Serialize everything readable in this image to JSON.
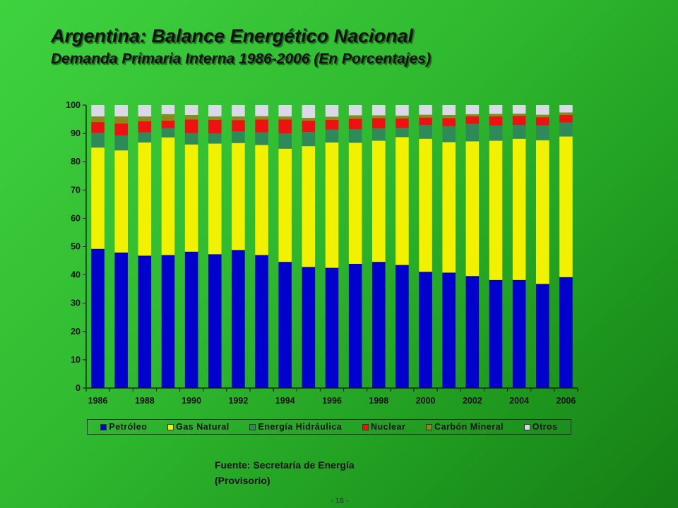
{
  "title": "Argentina: Balance Energético Nacional",
  "subtitle": "Demanda Primaria Interna 1986-2006 (En Porcentajes)",
  "source_line1": "Fuente: Secretaría de Energía",
  "source_line2": "(Provisorio)",
  "page_number": "- 18 -",
  "chart_data": {
    "type": "bar",
    "stacked": true,
    "categories": [
      "1986",
      "1987",
      "1988",
      "1989",
      "1990",
      "1991",
      "1992",
      "1993",
      "1994",
      "1995",
      "1996",
      "1997",
      "1998",
      "1999",
      "2000",
      "2001",
      "2002",
      "2003",
      "2004",
      "2005",
      "2006"
    ],
    "x_tick_labels": [
      "1986",
      "1988",
      "1990",
      "1992",
      "1994",
      "1996",
      "1998",
      "2000",
      "2002",
      "2004",
      "2006"
    ],
    "ylim": [
      0,
      100
    ],
    "y_ticks": [
      0,
      10,
      20,
      30,
      40,
      50,
      60,
      70,
      80,
      90,
      100
    ],
    "grid": false,
    "legend_position": "bottom",
    "series": [
      {
        "name": "Petróleo",
        "color": "#0000cc",
        "values": [
          49.2,
          47.9,
          46.8,
          47.0,
          48.2,
          47.3,
          48.8,
          47.0,
          44.6,
          42.8,
          42.5,
          43.9,
          44.6,
          43.5,
          41.1,
          40.8,
          39.6,
          38.2,
          38.2,
          36.8,
          39.2
        ]
      },
      {
        "name": "Gas Natural",
        "color": "#f2f200",
        "values": [
          35.8,
          36.1,
          40.0,
          41.6,
          37.9,
          39.1,
          37.8,
          38.9,
          40.0,
          42.7,
          44.3,
          42.8,
          42.8,
          45.2,
          47.0,
          46.1,
          47.6,
          49.2,
          49.9,
          50.8,
          49.7
        ]
      },
      {
        "name": "Energía Hidráulica",
        "color": "#2e8b57",
        "values": [
          5.2,
          5.3,
          3.6,
          3.3,
          4.0,
          3.6,
          4.1,
          4.5,
          5.4,
          5.0,
          4.6,
          4.8,
          4.4,
          3.3,
          4.9,
          5.7,
          6.2,
          5.4,
          4.9,
          5.3,
          5.0
        ]
      },
      {
        "name": "Nuclear",
        "color": "#ee1111",
        "values": [
          3.8,
          4.2,
          3.9,
          2.6,
          4.8,
          4.8,
          4.0,
          4.5,
          4.9,
          4.0,
          3.4,
          3.7,
          3.6,
          3.3,
          2.6,
          2.8,
          2.6,
          3.2,
          3.2,
          2.8,
          2.6
        ]
      },
      {
        "name": "Carbón Mineral",
        "color": "#8a8a1a",
        "values": [
          2.0,
          2.5,
          1.7,
          2.3,
          1.6,
          1.2,
          1.3,
          1.2,
          1.1,
          1.0,
          1.1,
          1.2,
          1.0,
          1.0,
          1.0,
          1.1,
          0.8,
          0.9,
          0.8,
          0.9,
          0.9
        ]
      },
      {
        "name": "Otros",
        "color": "#d9d9e8",
        "values": [
          4.0,
          4.0,
          4.0,
          3.2,
          3.5,
          4.0,
          4.0,
          3.9,
          4.0,
          4.5,
          4.1,
          3.6,
          3.6,
          3.7,
          3.4,
          3.5,
          3.2,
          3.1,
          3.0,
          3.4,
          2.6
        ]
      }
    ]
  }
}
